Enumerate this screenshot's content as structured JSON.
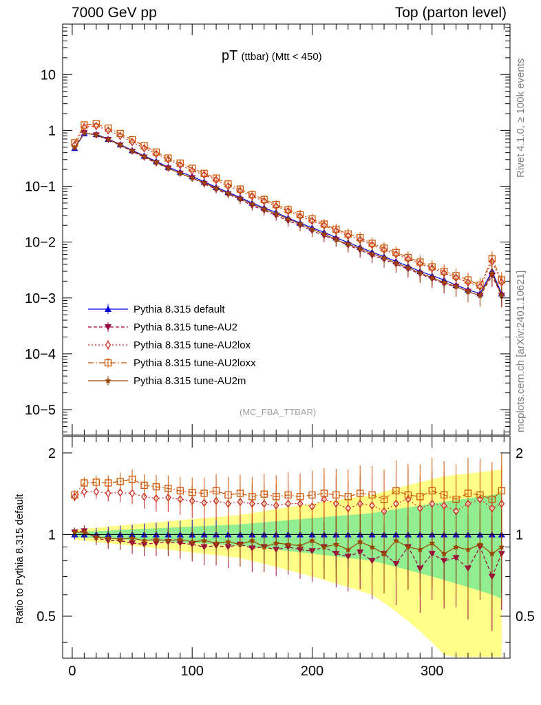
{
  "header": {
    "left": "7000 GeV pp",
    "right": "Top (parton level)"
  },
  "side_labels": {
    "rivet": "Rivet 4.1.0, ≥ 100k events",
    "mcplots": "mcplots.cern.ch [arXiv:2401.10621]"
  },
  "plot_title": {
    "main": "pT",
    "sub": "(ttbar) (Mtt < 450)"
  },
  "analysis_tag": "(MC_FBA_TTBAR)",
  "ratio_ylabel": "Ratio to Pythia 8.315 default",
  "chart_data": {
    "type": "line",
    "title": "pT (ttbar) (Mtt < 450)",
    "xlabel": "",
    "ylabel": "",
    "xlim": [
      -8,
      365
    ],
    "main_yscale": "log",
    "main_ylim": [
      3.5e-06,
      80
    ],
    "main_yticks": [
      {
        "value": 10,
        "label": "10"
      },
      {
        "value": 1,
        "label": "1"
      },
      {
        "value": 0.1,
        "label": "10−1"
      },
      {
        "value": 0.01,
        "label": "10−2"
      },
      {
        "value": 0.001,
        "label": "10−3"
      },
      {
        "value": 0.0001,
        "label": "10−4"
      },
      {
        "value": 1e-05,
        "label": "10−5"
      }
    ],
    "ratio_ylim": [
      0.35,
      2.3
    ],
    "ratio_yticks": [
      {
        "value": 0.5,
        "label": "0.5"
      },
      {
        "value": 1,
        "label": "1"
      },
      {
        "value": 2,
        "label": "2"
      }
    ],
    "xticks": [
      {
        "value": 0,
        "label": "0"
      },
      {
        "value": 100,
        "label": "100"
      },
      {
        "value": 200,
        "label": "200"
      },
      {
        "value": 300,
        "label": "300"
      }
    ],
    "x": [
      2,
      10,
      20,
      30,
      40,
      50,
      60,
      70,
      80,
      90,
      100,
      110,
      120,
      130,
      140,
      150,
      160,
      170,
      180,
      190,
      200,
      210,
      220,
      230,
      240,
      250,
      260,
      270,
      280,
      290,
      300,
      310,
      320,
      330,
      340,
      350,
      358
    ],
    "series": [
      {
        "name": "Pythia 8.315 default",
        "color": "#0000dd",
        "marker": "triangle-up",
        "dash": "",
        "values": [
          0.48,
          0.88,
          0.85,
          0.7,
          0.56,
          0.44,
          0.35,
          0.28,
          0.22,
          0.18,
          0.15,
          0.12,
          0.096,
          0.078,
          0.063,
          0.05,
          0.041,
          0.034,
          0.027,
          0.022,
          0.018,
          0.015,
          0.012,
          0.0098,
          0.0081,
          0.0066,
          0.0055,
          0.0045,
          0.0037,
          0.003,
          0.0025,
          0.0021,
          0.0017,
          0.0014,
          0.0012,
          0.003,
          0.0012
        ],
        "ratio": [
          1,
          1,
          1,
          1,
          1,
          1,
          1,
          1,
          1,
          1,
          1,
          1,
          1,
          1,
          1,
          1,
          1,
          1,
          1,
          1,
          1,
          1,
          1,
          1,
          1,
          1,
          1,
          1,
          1,
          1,
          1,
          1,
          1,
          1,
          1,
          1,
          1
        ]
      },
      {
        "name": "Pythia 8.315 tune-AU2",
        "color": "#990044",
        "marker": "triangle-down",
        "dash": "5,3",
        "values": [
          0.5,
          0.9,
          0.82,
          0.68,
          0.54,
          0.42,
          0.33,
          0.26,
          0.21,
          0.17,
          0.14,
          0.11,
          0.088,
          0.072,
          0.058,
          0.045,
          0.037,
          0.03,
          0.024,
          0.02,
          0.016,
          0.013,
          0.011,
          0.0088,
          0.0072,
          0.0058,
          0.0049,
          0.004,
          0.0033,
          0.0027,
          0.0022,
          0.0018,
          0.0016,
          0.0013,
          0.0011,
          0.0025,
          0.0011
        ],
        "ratio": [
          1.02,
          1.03,
          0.97,
          0.95,
          0.95,
          0.93,
          0.92,
          0.93,
          0.94,
          0.93,
          0.92,
          0.9,
          0.91,
          0.9,
          0.92,
          0.89,
          0.9,
          0.88,
          0.9,
          0.88,
          0.87,
          0.9,
          0.85,
          0.83,
          0.86,
          0.8,
          0.85,
          0.78,
          0.9,
          0.75,
          0.85,
          0.8,
          0.82,
          0.75,
          0.9,
          0.7,
          0.85
        ]
      },
      {
        "name": "Pythia 8.315 tune-AU2lox",
        "color": "#cc2222",
        "marker": "diamond",
        "dash": "2,3",
        "values": [
          0.55,
          1.15,
          1.2,
          1.0,
          0.8,
          0.62,
          0.48,
          0.38,
          0.3,
          0.24,
          0.19,
          0.16,
          0.13,
          0.1,
          0.083,
          0.066,
          0.054,
          0.044,
          0.036,
          0.029,
          0.024,
          0.02,
          0.016,
          0.013,
          0.011,
          0.0089,
          0.0073,
          0.006,
          0.005,
          0.0041,
          0.0034,
          0.0028,
          0.0023,
          0.0019,
          0.0016,
          0.0045,
          0.0019
        ],
        "ratio": [
          1.38,
          1.44,
          1.44,
          1.42,
          1.43,
          1.42,
          1.38,
          1.36,
          1.37,
          1.35,
          1.33,
          1.31,
          1.33,
          1.3,
          1.32,
          1.3,
          1.3,
          1.28,
          1.3,
          1.3,
          1.27,
          1.35,
          1.3,
          1.25,
          1.3,
          1.28,
          1.22,
          1.3,
          1.35,
          1.25,
          1.3,
          1.28,
          1.22,
          1.3,
          1.35,
          1.25,
          1.3
        ]
      },
      {
        "name": "Pythia 8.315 tune-AU2loxx",
        "color": "#cc5500",
        "marker": "square",
        "dash": "8,3,2,3",
        "values": [
          0.6,
          1.25,
          1.32,
          1.1,
          0.88,
          0.68,
          0.53,
          0.41,
          0.32,
          0.26,
          0.21,
          0.17,
          0.14,
          0.11,
          0.089,
          0.071,
          0.058,
          0.047,
          0.038,
          0.031,
          0.026,
          0.021,
          0.017,
          0.014,
          0.012,
          0.0095,
          0.0078,
          0.0065,
          0.0053,
          0.0044,
          0.0036,
          0.003,
          0.0025,
          0.0021,
          0.0017,
          0.005,
          0.0021
        ],
        "ratio": [
          1.4,
          1.55,
          1.56,
          1.55,
          1.57,
          1.6,
          1.52,
          1.5,
          1.48,
          1.45,
          1.43,
          1.42,
          1.45,
          1.4,
          1.42,
          1.38,
          1.41,
          1.38,
          1.4,
          1.38,
          1.4,
          1.42,
          1.4,
          1.38,
          1.42,
          1.4,
          1.35,
          1.45,
          1.4,
          1.38,
          1.45,
          1.4,
          1.35,
          1.42,
          1.4,
          1.35,
          1.45
        ]
      },
      {
        "name": "Pythia 8.315 tune-AU2m",
        "color": "#994400",
        "marker": "star",
        "dash": "",
        "values": [
          0.49,
          0.9,
          0.83,
          0.69,
          0.55,
          0.43,
          0.34,
          0.27,
          0.21,
          0.17,
          0.14,
          0.115,
          0.092,
          0.075,
          0.06,
          0.048,
          0.039,
          0.032,
          0.026,
          0.021,
          0.017,
          0.014,
          0.011,
          0.0092,
          0.0076,
          0.0062,
          0.0052,
          0.0042,
          0.0035,
          0.0028,
          0.0023,
          0.0019,
          0.0016,
          0.0013,
          0.0011,
          0.0028,
          0.0011
        ],
        "ratio": [
          1.02,
          1.02,
          0.98,
          0.97,
          0.96,
          0.97,
          0.95,
          0.96,
          0.95,
          0.96,
          0.94,
          0.95,
          0.93,
          0.94,
          0.92,
          0.95,
          0.9,
          0.93,
          0.92,
          0.91,
          0.95,
          0.9,
          0.92,
          0.88,
          0.94,
          0.9,
          0.85,
          0.95,
          0.9,
          0.88,
          0.93,
          0.85,
          0.9,
          0.88,
          0.92,
          0.85,
          0.9
        ]
      }
    ],
    "ratio_band": {
      "green_halfwidth": [
        0.02,
        0.025,
        0.03,
        0.035,
        0.04,
        0.045,
        0.05,
        0.055,
        0.06,
        0.065,
        0.07,
        0.075,
        0.08,
        0.085,
        0.09,
        0.1,
        0.11,
        0.12,
        0.13,
        0.14,
        0.15,
        0.16,
        0.17,
        0.18,
        0.19,
        0.2,
        0.22,
        0.24,
        0.26,
        0.28,
        0.3,
        0.32,
        0.34,
        0.36,
        0.38,
        0.4,
        0.42
      ],
      "yellow_halfwidth": [
        0.04,
        0.05,
        0.06,
        0.07,
        0.08,
        0.09,
        0.1,
        0.11,
        0.12,
        0.13,
        0.14,
        0.15,
        0.16,
        0.17,
        0.18,
        0.2,
        0.22,
        0.24,
        0.26,
        0.28,
        0.3,
        0.32,
        0.34,
        0.36,
        0.38,
        0.4,
        0.44,
        0.48,
        0.52,
        0.56,
        0.6,
        0.64,
        0.66,
        0.68,
        0.7,
        0.72,
        0.74
      ],
      "green": "#90ee90",
      "yellow": "#ffff88"
    }
  }
}
